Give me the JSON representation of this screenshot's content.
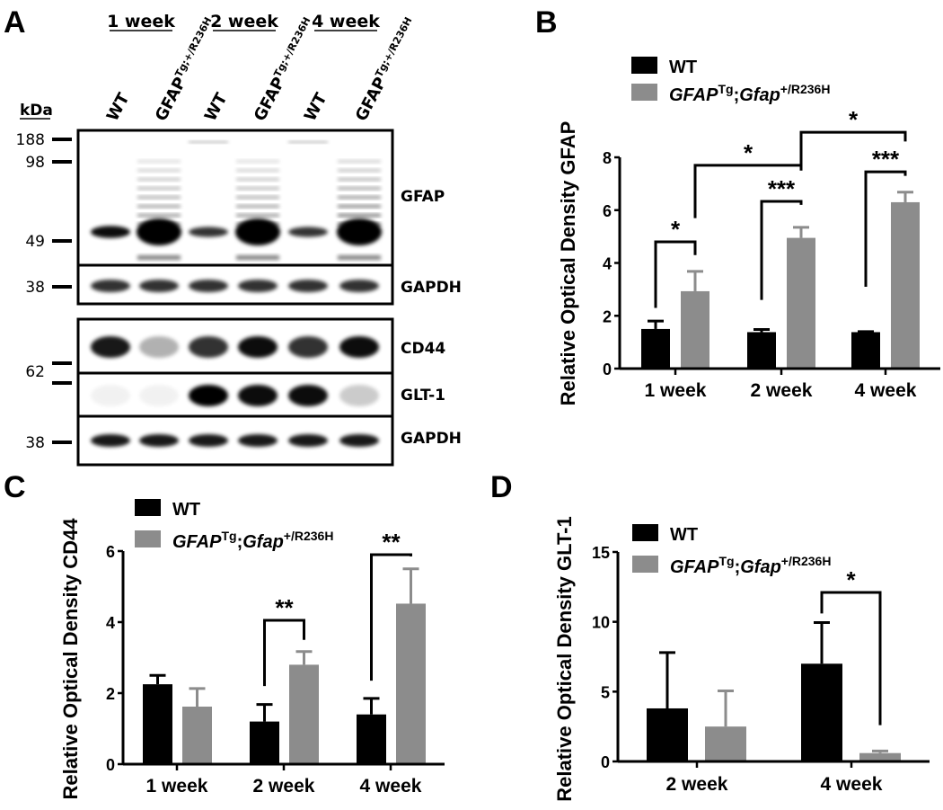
{
  "panels": {
    "A": "A",
    "B": "B",
    "C": "C",
    "D": "D"
  },
  "blot": {
    "weeks": [
      "1 week",
      "2 week",
      "4 week"
    ],
    "lanes": [
      {
        "main": "WT",
        "sup": ""
      },
      {
        "main": "GFAP",
        "sup": "Tg;+/R236H"
      },
      {
        "main": "WT",
        "sup": ""
      },
      {
        "main": "GFAP",
        "sup": "Tg;+/R236H"
      },
      {
        "main": "WT",
        "sup": ""
      },
      {
        "main": "GFAP",
        "sup": "Tg;+/R236H"
      }
    ],
    "kda_label": "kDa",
    "markers": [
      "188",
      "98",
      "49",
      "38",
      "62",
      "38"
    ],
    "rows": [
      {
        "label": "GFAP",
        "band_intensity": [
          0.85,
          1,
          0.7,
          1,
          0.7,
          1
        ]
      },
      {
        "label": "GAPDH",
        "band_intensity": [
          0.8,
          0.8,
          0.8,
          0.8,
          0.8,
          0.8
        ]
      },
      {
        "label": "CD44",
        "band_intensity": [
          0.9,
          0.3,
          0.8,
          0.95,
          0.8,
          0.95
        ]
      },
      {
        "label": "GLT-1",
        "band_intensity": [
          0.05,
          0.05,
          1,
          0.95,
          0.95,
          0.2
        ]
      },
      {
        "label": "GAPDH",
        "band_intensity": [
          0.9,
          0.9,
          0.9,
          0.9,
          0.9,
          0.9
        ]
      }
    ]
  },
  "legend": {
    "wt": "WT",
    "mut_a": "GFAP",
    "mut_a_sup": "Tg",
    "mut_sep": ";",
    "mut_b": "Gfap",
    "mut_b_sup": "+/R236H"
  },
  "colors": {
    "wt": "#000000",
    "mut": "#8c8c8c"
  },
  "chart_data": [
    {
      "type": "bar",
      "panel": "B",
      "ylabel": "Relative Optical Density GFAP",
      "categories": [
        "1 week",
        "2 week",
        "4 week"
      ],
      "ylim": [
        0,
        8
      ],
      "yticks": [
        "0",
        "2",
        "4",
        "6",
        "8"
      ],
      "series": [
        {
          "name": "WT",
          "values": [
            1.5,
            1.38,
            1.38
          ],
          "errors": [
            0.3,
            0.1,
            0.02
          ]
        },
        {
          "name": "GFAPTg;Gfap+/R236H",
          "values": [
            2.93,
            4.95,
            6.3
          ],
          "errors": [
            0.75,
            0.4,
            0.38
          ]
        }
      ],
      "significance": [
        {
          "from": [
            0,
            0
          ],
          "to": [
            0,
            1
          ],
          "top": 4.8,
          "left_end": 2.3,
          "right_end": 4.3,
          "label": "*"
        },
        {
          "from": [
            1,
            0
          ],
          "to": [
            1,
            1
          ],
          "top": 6.33,
          "left_end": 2.6,
          "right_end": 6.2,
          "label": "***"
        },
        {
          "from": [
            2,
            0
          ],
          "to": [
            2,
            1
          ],
          "top": 7.45,
          "left_end": 3.1,
          "right_end": 7.3,
          "label": "***"
        },
        {
          "from": [
            0,
            1
          ],
          "to": [
            1,
            1
          ],
          "top": 7.7,
          "left_end": 5.7,
          "right_end": 7.5,
          "label": "*"
        },
        {
          "from": [
            1,
            1
          ],
          "to": [
            2,
            1
          ],
          "top": 8.95,
          "left_end": 7.7,
          "right_end": 8.6,
          "label": "*"
        }
      ]
    },
    {
      "type": "bar",
      "panel": "C",
      "ylabel": "Relative Optical Density CD44",
      "categories": [
        "1 week",
        "2 week",
        "4 week"
      ],
      "ylim": [
        0,
        6
      ],
      "yticks": [
        "0",
        "2",
        "4",
        "6"
      ],
      "series": [
        {
          "name": "WT",
          "values": [
            2.25,
            1.2,
            1.4
          ],
          "errors": [
            0.25,
            0.48,
            0.45
          ]
        },
        {
          "name": "GFAPTg;Gfap+/R236H",
          "values": [
            1.62,
            2.8,
            4.52
          ],
          "errors": [
            0.51,
            0.37,
            0.98
          ]
        }
      ],
      "significance": [
        {
          "from": [
            1,
            0
          ],
          "to": [
            1,
            1
          ],
          "top": 4.05,
          "left_end": 2.2,
          "right_end": 3.5,
          "label": "**"
        },
        {
          "from": [
            2,
            0
          ],
          "to": [
            2,
            1
          ],
          "top": 5.9,
          "left_end": 2.35,
          "right_end": 5.85,
          "label": "**"
        }
      ]
    },
    {
      "type": "bar",
      "panel": "D",
      "ylabel": "Relative Optical Density GLT-1",
      "categories": [
        "2 week",
        "4 week"
      ],
      "ylim": [
        0,
        15
      ],
      "yticks": [
        "0",
        "5",
        "10",
        "15"
      ],
      "series": [
        {
          "name": "WT",
          "values": [
            3.8,
            7.0
          ],
          "errors": [
            4.0,
            2.95
          ]
        },
        {
          "name": "GFAPTg;Gfap+/R236H",
          "values": [
            2.5,
            0.6
          ],
          "errors": [
            2.55,
            0.15
          ]
        }
      ],
      "significance": [
        {
          "from": [
            1,
            0
          ],
          "to": [
            1,
            1
          ],
          "top": 12.1,
          "left_end": 10.6,
          "right_end": 2.6,
          "label": "*"
        }
      ]
    }
  ]
}
